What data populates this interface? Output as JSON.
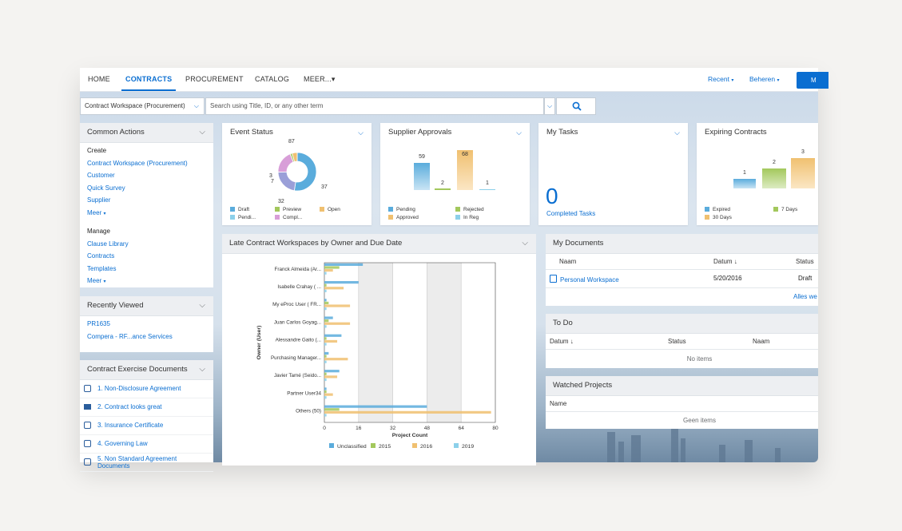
{
  "nav": {
    "tabs": [
      "HOME",
      "CONTRACTS",
      "PROCUREMENT",
      "CATALOG",
      "MEER..."
    ],
    "more_caret": "▾",
    "recent": "Recent",
    "manage": "Beheren",
    "button_label": "M"
  },
  "search": {
    "scope": "Contract Workspace (Procurement)",
    "placeholder": "Search using Title, ID, or any other term"
  },
  "common_actions": {
    "title": "Common Actions",
    "create_label": "Create",
    "create_items": [
      "Contract Workspace (Procurement)",
      "Customer",
      "Quick Survey",
      "Supplier",
      "Meer"
    ],
    "manage_label": "Manage",
    "manage_items": [
      "Clause Library",
      "Contracts",
      "Templates",
      "Meer"
    ]
  },
  "recently_viewed": {
    "title": "Recently Viewed",
    "items": [
      "PR1635",
      "Compera - RF...ance Services"
    ]
  },
  "exercise_docs": {
    "title": "Contract Exercise Documents",
    "items": [
      "1. Non-Disclosure Agreement",
      "2. Contract looks great",
      "3. Insurance Certificate",
      "4. Governing Law",
      "5. Non Standard Agreement Documents"
    ]
  },
  "event_status": {
    "title": "Event Status",
    "slices": [
      {
        "label": "Draft",
        "value": 87,
        "color": "#5aacdc"
      },
      {
        "label": "Open",
        "value": 37,
        "color": "#9a9fd8"
      },
      {
        "label": "Compl...",
        "value": 32,
        "color": "#d89ed8"
      },
      {
        "label": "Preview",
        "value": 3,
        "color": "#a3c85c"
      },
      {
        "label": "Pendi...",
        "value": 7,
        "color": "#f0c070"
      }
    ],
    "labels": [
      "87",
      "3",
      "7",
      "32",
      "37"
    ],
    "legend": [
      "Draft",
      "Preview",
      "Open",
      "Pendi...",
      "Compl..."
    ]
  },
  "supplier_approvals": {
    "title": "Supplier Approvals",
    "values": [
      "59",
      "2",
      "68",
      "1"
    ],
    "legend": [
      "Pending",
      "Rejected",
      "Approved",
      "In Reg"
    ]
  },
  "my_tasks": {
    "title": "My Tasks",
    "count": "0",
    "caption": "Completed Tasks"
  },
  "expiring_contracts": {
    "title": "Expiring Contracts",
    "values": [
      "1",
      "2",
      "3"
    ],
    "legend": [
      "Expired",
      "7 Days",
      "30 Days"
    ]
  },
  "late_workspaces": {
    "title": "Late Contract Workspaces by Owner and Due Date"
  },
  "chart_data": {
    "type": "bar",
    "orientation": "horizontal",
    "ylabel": "Owner (User)",
    "xlabel": "Project Count",
    "xlim": [
      0,
      80
    ],
    "xticks": [
      "0",
      "16",
      "32",
      "48",
      "64",
      "80"
    ],
    "categories": [
      "Franck Almeida (Ar...",
      "Isabelle Crahay ( ...",
      "My eProc User ( FR...",
      "Juan Carlos Goyag...",
      "Alessandre Gaito (...",
      "Purchasing Manager...",
      "Javier Tamé (Seido...",
      "Partner User34",
      "Others (50)"
    ],
    "series": [
      {
        "name": "Unclassified",
        "color": "#5aacdc",
        "values": [
          18,
          16,
          1,
          4,
          8,
          2,
          7,
          1,
          48
        ]
      },
      {
        "name": "2015",
        "color": "#a3c85c",
        "values": [
          7,
          1,
          2,
          2,
          1,
          1,
          1,
          1,
          7
        ]
      },
      {
        "name": "2016",
        "color": "#f0c070",
        "values": [
          4,
          9,
          12,
          12,
          6,
          11,
          6,
          4,
          78
        ]
      },
      {
        "name": "2019",
        "color": "#8cd0ea",
        "values": [
          1,
          1,
          1,
          1,
          1,
          1,
          1,
          1,
          1
        ]
      }
    ],
    "grid": "vertical"
  },
  "my_documents": {
    "title": "My Documents",
    "columns": [
      "Naam",
      "Datum ↓",
      "Status"
    ],
    "rows": [
      [
        "Personal Workspace",
        "5/20/2016",
        "Draft"
      ]
    ],
    "more_link": "Alles we"
  },
  "todo": {
    "title": "To Do",
    "columns": [
      "Datum ↓",
      "Status",
      "Naam"
    ],
    "empty": "No items"
  },
  "watched_projects": {
    "title": "Watched Projects",
    "columns": [
      "Name"
    ],
    "empty": "Geen items"
  }
}
